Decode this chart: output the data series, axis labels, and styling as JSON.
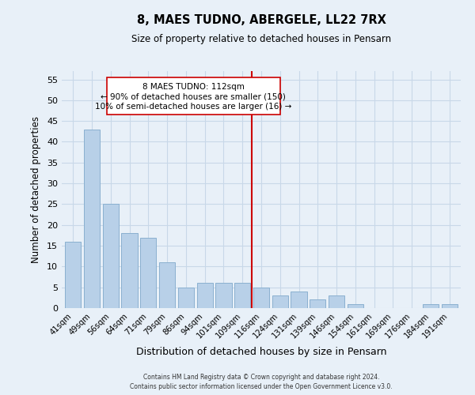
{
  "title": "8, MAES TUDNO, ABERGELE, LL22 7RX",
  "subtitle": "Size of property relative to detached houses in Pensarn",
  "xlabel": "Distribution of detached houses by size in Pensarn",
  "ylabel": "Number of detached properties",
  "footer_line1": "Contains HM Land Registry data © Crown copyright and database right 2024.",
  "footer_line2": "Contains public sector information licensed under the Open Government Licence v3.0.",
  "bar_labels": [
    "41sqm",
    "49sqm",
    "56sqm",
    "64sqm",
    "71sqm",
    "79sqm",
    "86sqm",
    "94sqm",
    "101sqm",
    "109sqm",
    "116sqm",
    "124sqm",
    "131sqm",
    "139sqm",
    "146sqm",
    "154sqm",
    "161sqm",
    "169sqm",
    "176sqm",
    "184sqm",
    "191sqm"
  ],
  "bar_values": [
    16,
    43,
    25,
    18,
    17,
    11,
    5,
    6,
    6,
    6,
    5,
    3,
    4,
    2,
    3,
    1,
    0,
    0,
    0,
    1,
    1
  ],
  "bar_color": "#b8d0e8",
  "bar_edge_color": "#8ab0d0",
  "grid_color": "#c8d8e8",
  "background_color": "#e8f0f8",
  "vline_color": "#cc0000",
  "annotation_box_text_line1": "8 MAES TUDNO: 112sqm",
  "annotation_box_text_line2": "← 90% of detached houses are smaller (150)",
  "annotation_box_text_line3": "10% of semi-detached houses are larger (16) →",
  "ylim": [
    0,
    57
  ],
  "yticks": [
    0,
    5,
    10,
    15,
    20,
    25,
    30,
    35,
    40,
    45,
    50,
    55
  ]
}
